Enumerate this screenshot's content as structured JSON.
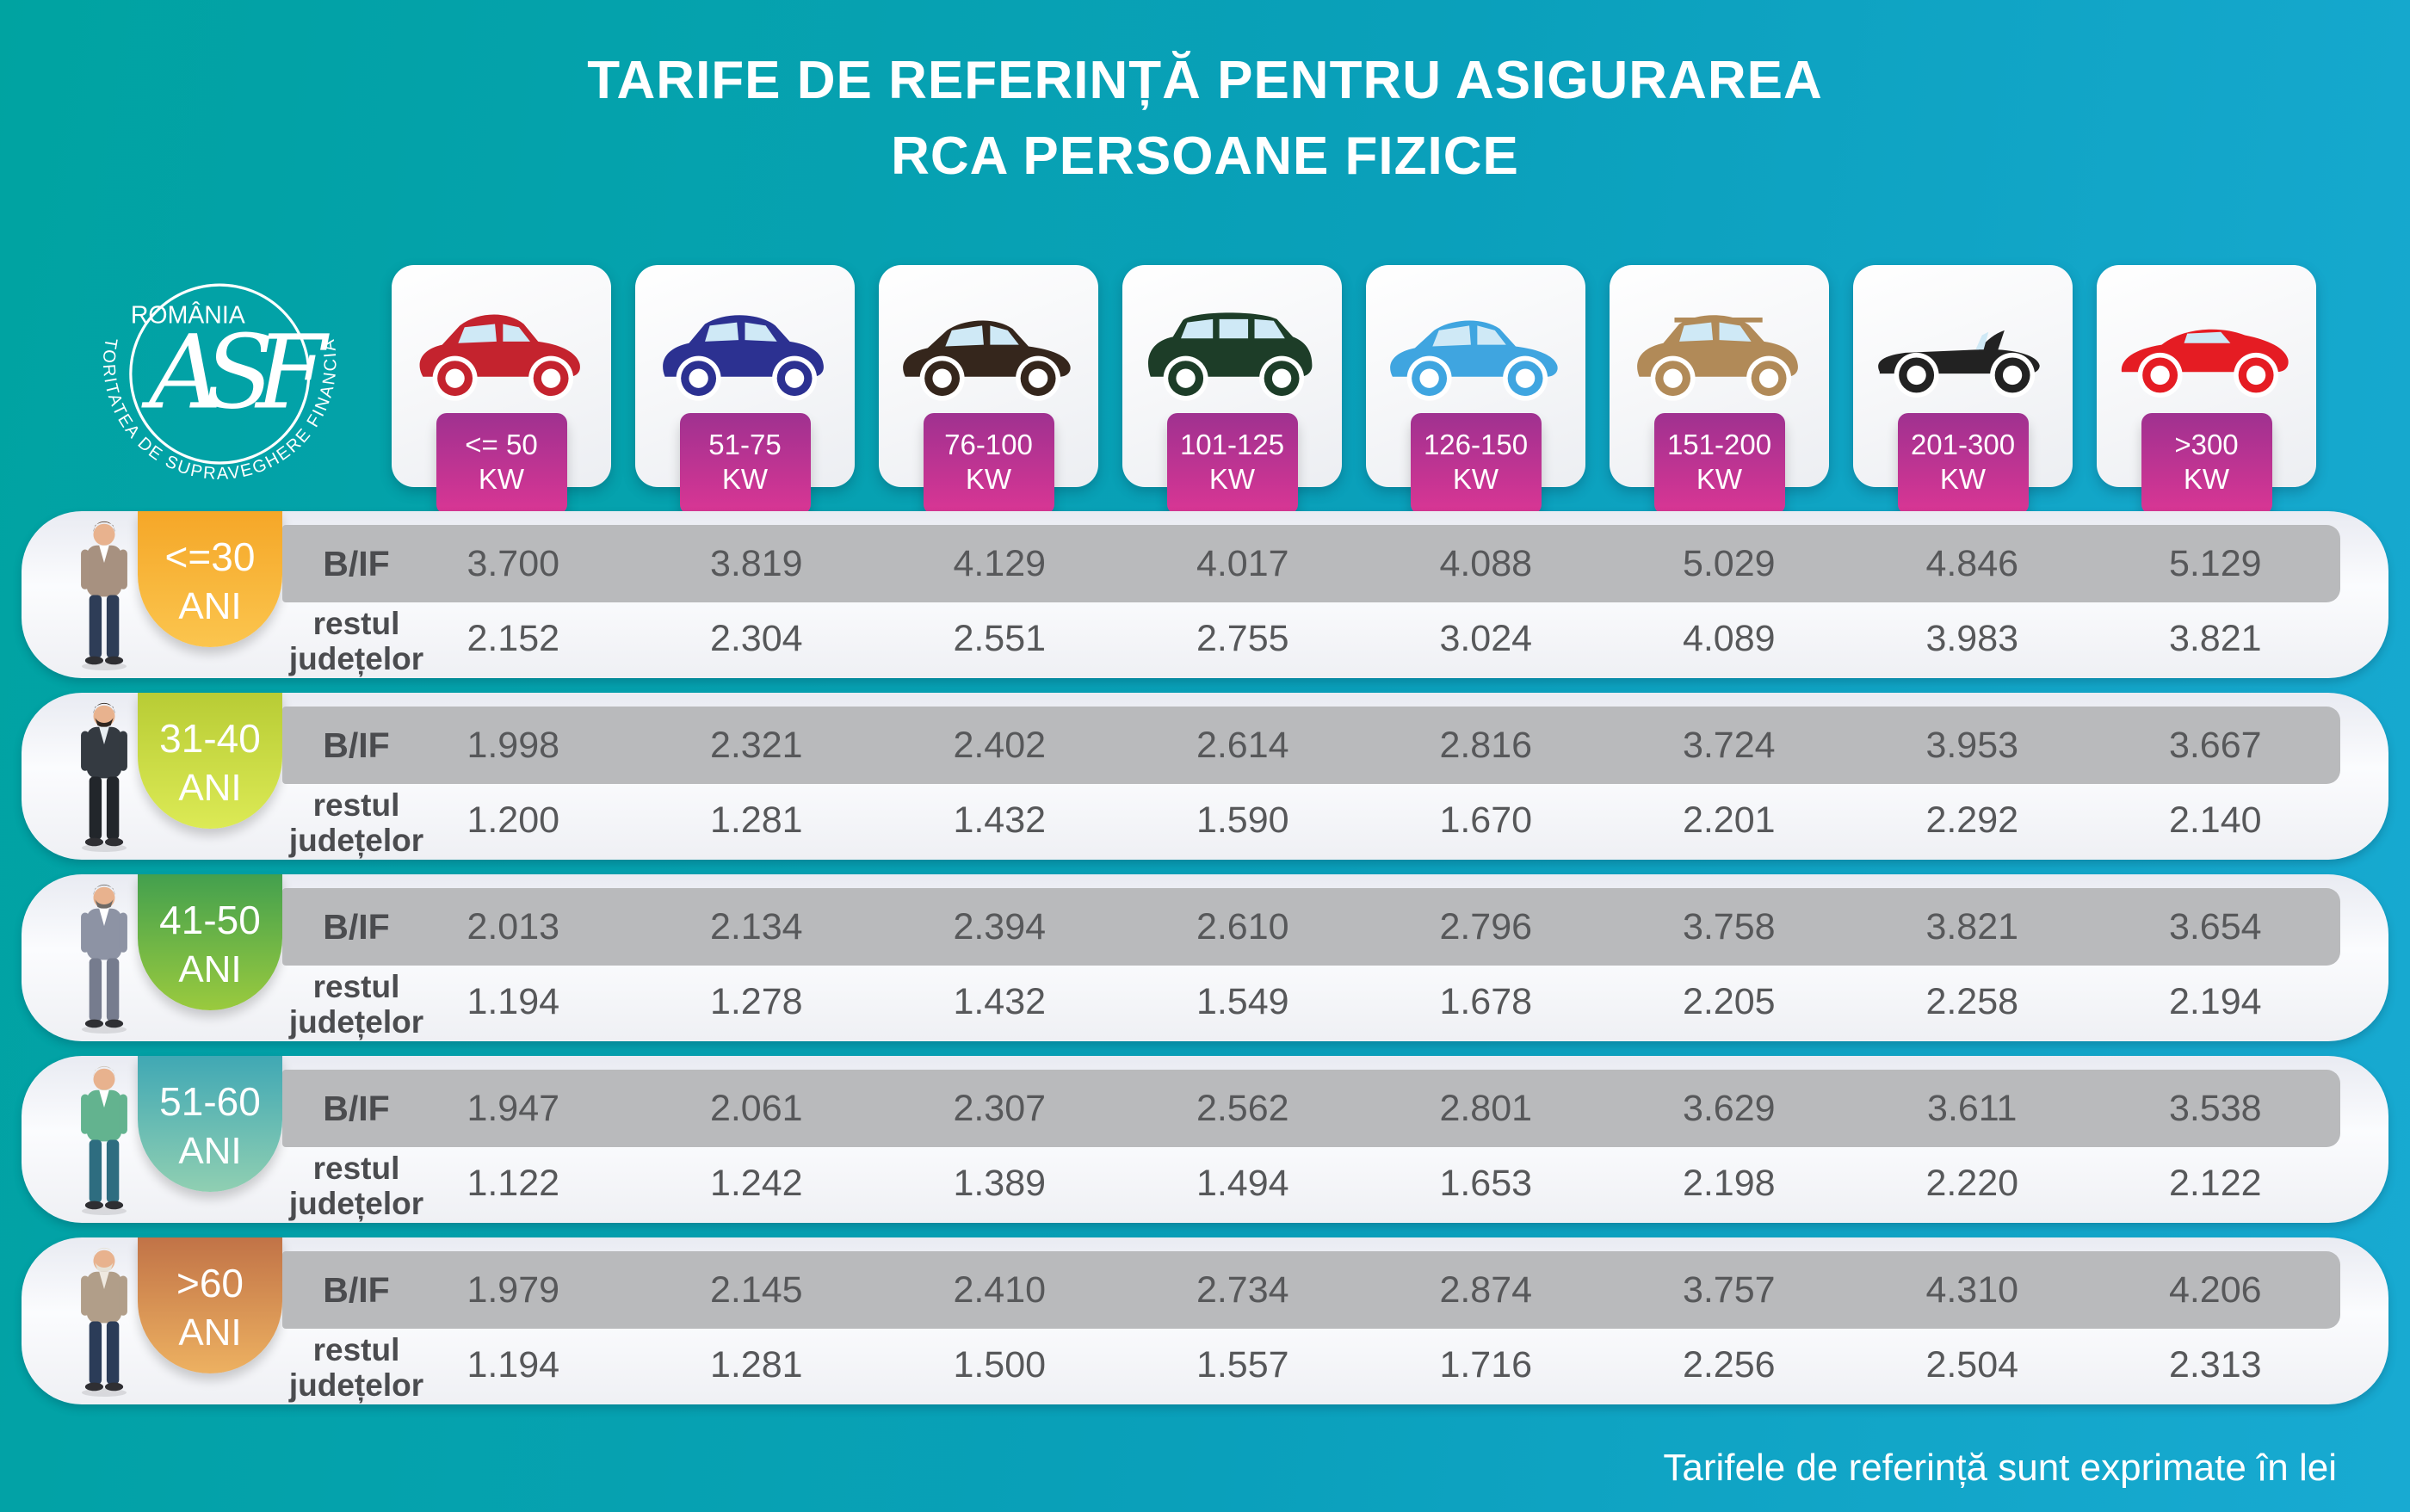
{
  "title": {
    "line1": "TARIFE DE REFERINȚĂ PENTRU ASIGURAREA",
    "line2": "RCA PERSOANE FIZICE"
  },
  "logo": {
    "country": "ROMÂNIA",
    "monogram": "ASF",
    "organization": "AUTORITATEA DE SUPRAVEGHERE FINANCIARĂ"
  },
  "footer": {
    "note": "Tarifele de referință sunt exprimate în lei"
  },
  "row_labels": {
    "bif": "B/IF",
    "rest_line1": "restul",
    "rest_line2": "județelor"
  },
  "power_categories": [
    {
      "range": "<= 50",
      "unit": "KW",
      "car_type": "city",
      "car_color": "#c4232e"
    },
    {
      "range": "51-75",
      "unit": "KW",
      "car_type": "suv",
      "car_color": "#2c3191"
    },
    {
      "range": "76-100",
      "unit": "KW",
      "car_type": "sedan",
      "car_color": "#35261c"
    },
    {
      "range": "101-125",
      "unit": "KW",
      "car_type": "minivan",
      "car_color": "#1d3d28"
    },
    {
      "range": "126-150",
      "unit": "KW",
      "car_type": "sedan",
      "car_color": "#3fa5e0"
    },
    {
      "range": "151-200",
      "unit": "KW",
      "car_type": "suv-roofrack",
      "car_color": "#b18a58"
    },
    {
      "range": "201-300",
      "unit": "KW",
      "car_type": "convertible",
      "car_color": "#222222"
    },
    {
      "range": ">300",
      "unit": "KW",
      "car_type": "sports",
      "car_color": "#e51c23"
    }
  ],
  "age_groups": [
    {
      "range": "<=30",
      "unit": "ANI",
      "badge_top": "#f5a728",
      "badge_bottom": "#fbc54e",
      "bif": [
        "3.700",
        "3.819",
        "4.129",
        "4.017",
        "4.088",
        "5.029",
        "4.846",
        "5.129"
      ],
      "rest": [
        "2.152",
        "2.304",
        "2.551",
        "2.755",
        "3.024",
        "4.089",
        "3.983",
        "3.821"
      ]
    },
    {
      "range": "31-40",
      "unit": "ANI",
      "badge_top": "#b8cc35",
      "badge_bottom": "#dcea55",
      "bif": [
        "1.998",
        "2.321",
        "2.402",
        "2.614",
        "2.816",
        "3.724",
        "3.953",
        "3.667"
      ],
      "rest": [
        "1.200",
        "1.281",
        "1.432",
        "1.590",
        "1.670",
        "2.201",
        "2.292",
        "2.140"
      ]
    },
    {
      "range": "41-50",
      "unit": "ANI",
      "badge_top": "#43a04e",
      "badge_bottom": "#9aca3e",
      "bif": [
        "2.013",
        "2.134",
        "2.394",
        "2.610",
        "2.796",
        "3.758",
        "3.821",
        "3.654"
      ],
      "rest": [
        "1.194",
        "1.278",
        "1.432",
        "1.549",
        "1.678",
        "2.205",
        "2.258",
        "2.194"
      ]
    },
    {
      "range": "51-60",
      "unit": "ANI",
      "badge_top": "#40a8b4",
      "badge_bottom": "#90cfb2",
      "bif": [
        "1.947",
        "2.061",
        "2.307",
        "2.562",
        "2.801",
        "3.629",
        "3.611",
        "3.538"
      ],
      "rest": [
        "1.122",
        "1.242",
        "1.389",
        "1.494",
        "1.653",
        "2.198",
        "2.220",
        "2.122"
      ]
    },
    {
      "range": ">60",
      "unit": "ANI",
      "badge_top": "#c17347",
      "badge_bottom": "#edb161",
      "bif": [
        "1.979",
        "2.145",
        "2.410",
        "2.734",
        "2.874",
        "3.757",
        "4.310",
        "4.206"
      ],
      "rest": [
        "1.194",
        "1.281",
        "1.500",
        "1.557",
        "1.716",
        "2.256",
        "2.504",
        "2.313"
      ]
    }
  ],
  "colors": {
    "background_left": "#00a3a1",
    "background_right": "#18aad2",
    "kw_badge_top": "#9f3190",
    "kw_badge_bottom": "#da3694",
    "bif_band_gray": "#b9babc",
    "value_text": "#57585a"
  },
  "chart_data": {
    "type": "table",
    "title": "TARIFE DE REFERINȚĂ PENTRU ASIGURAREA RCA PERSOANE FIZICE",
    "unit_note": "Tarifele de referință sunt exprimate în lei",
    "columns_kw": [
      "<= 50 KW",
      "51-75 KW",
      "76-100 KW",
      "101-125 KW",
      "126-150 KW",
      "151-200 KW",
      "201-300 KW",
      ">300 KW"
    ],
    "rows": [
      {
        "age": "<=30 ANI",
        "region": "B/IF",
        "values": [
          3700,
          3819,
          4129,
          4017,
          4088,
          5029,
          4846,
          5129
        ]
      },
      {
        "age": "<=30 ANI",
        "region": "restul județelor",
        "values": [
          2152,
          2304,
          2551,
          2755,
          3024,
          4089,
          3983,
          3821
        ]
      },
      {
        "age": "31-40 ANI",
        "region": "B/IF",
        "values": [
          1998,
          2321,
          2402,
          2614,
          2816,
          3724,
          3953,
          3667
        ]
      },
      {
        "age": "31-40 ANI",
        "region": "restul județelor",
        "values": [
          1200,
          1281,
          1432,
          1590,
          1670,
          2201,
          2292,
          2140
        ]
      },
      {
        "age": "41-50 ANI",
        "region": "B/IF",
        "values": [
          2013,
          2134,
          2394,
          2610,
          2796,
          3758,
          3821,
          3654
        ]
      },
      {
        "age": "41-50 ANI",
        "region": "restul județelor",
        "values": [
          1194,
          1278,
          1432,
          1549,
          1678,
          2205,
          2258,
          2194
        ]
      },
      {
        "age": "51-60 ANI",
        "region": "B/IF",
        "values": [
          1947,
          2061,
          2307,
          2562,
          2801,
          3629,
          3611,
          3538
        ]
      },
      {
        "age": "51-60 ANI",
        "region": "restul județelor",
        "values": [
          1122,
          1242,
          1389,
          1494,
          1653,
          2198,
          2220,
          2122
        ]
      },
      {
        "age": ">60 ANI",
        "region": "B/IF",
        "values": [
          1979,
          2145,
          2410,
          2734,
          2874,
          3757,
          4310,
          4206
        ]
      },
      {
        "age": ">60 ANI",
        "region": "restul județelor",
        "values": [
          1194,
          1281,
          1500,
          1557,
          1716,
          2256,
          2504,
          2313
        ]
      }
    ]
  }
}
